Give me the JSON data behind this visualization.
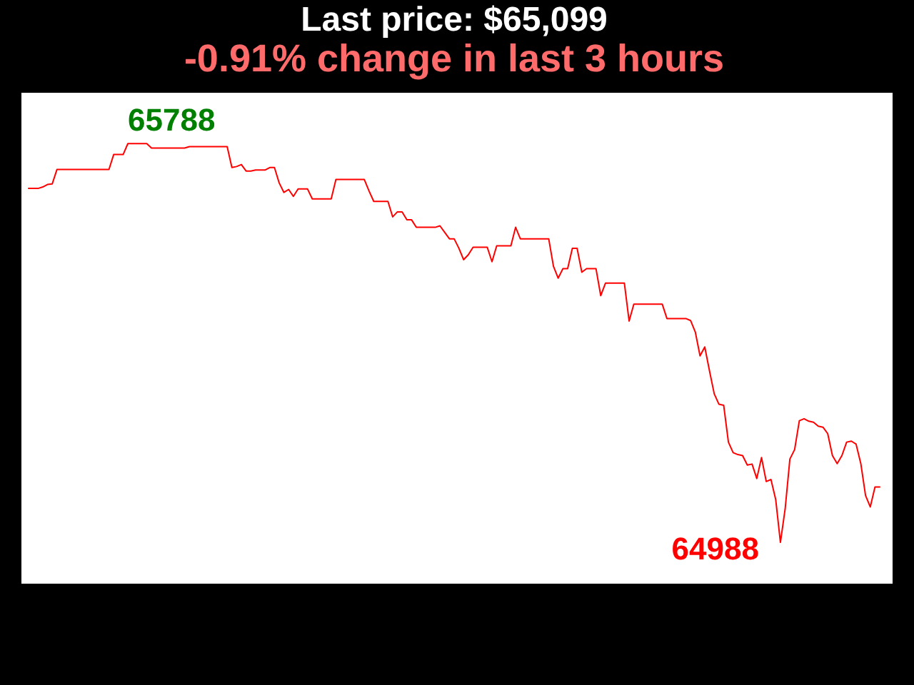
{
  "chart_data": {
    "type": "line",
    "title": "Last price: $65,099",
    "subtitle": "-0.91% change in last 3 hours",
    "categories": [
      null,
      null,
      null,
      null,
      null,
      null,
      null,
      null,
      null,
      null,
      null,
      null,
      null,
      null,
      null,
      null,
      null,
      null,
      null,
      null,
      null,
      null,
      null,
      null,
      null,
      null,
      null,
      null,
      null,
      null,
      null,
      null,
      null,
      null,
      null,
      null,
      null,
      null,
      null,
      null,
      null,
      null,
      null,
      null,
      null,
      null,
      null,
      null,
      null,
      null,
      null,
      null,
      null,
      null,
      null,
      null,
      null,
      null,
      null,
      null,
      null,
      null,
      null,
      null,
      null,
      null,
      null,
      null,
      null,
      null,
      null,
      null,
      null,
      null,
      null,
      null,
      null,
      null,
      null,
      null,
      null,
      null,
      null,
      null,
      null,
      null,
      null,
      null,
      null,
      null,
      null,
      null,
      null,
      null,
      null,
      null,
      null,
      null,
      null,
      null,
      null,
      null,
      null,
      null,
      null,
      null,
      null,
      null,
      null,
      null,
      null,
      null,
      null,
      null,
      null,
      null,
      null,
      null,
      null,
      null,
      null,
      null,
      null,
      null,
      null,
      null,
      null,
      null,
      null,
      null,
      null,
      null,
      null,
      null,
      null,
      null,
      null,
      null,
      null,
      null,
      null,
      null,
      null,
      null,
      null,
      null,
      null,
      null,
      null,
      null,
      null,
      null,
      null,
      null,
      null,
      null,
      null,
      null,
      null,
      null,
      null,
      null,
      null,
      null,
      null,
      null,
      null,
      null,
      null,
      null,
      null,
      null,
      null,
      null,
      null,
      null,
      null,
      null,
      null,
      null,
      null
    ],
    "values": [
      65698,
      65698,
      65698,
      65701,
      65706,
      65707,
      65736,
      65736,
      65736,
      65736,
      65736,
      65736,
      65736,
      65736,
      65736,
      65736,
      65736,
      65736,
      65766,
      65766,
      65766,
      65788,
      65788,
      65788,
      65788,
      65788,
      65779,
      65779,
      65779,
      65779,
      65779,
      65779,
      65779,
      65779,
      65782,
      65782,
      65782,
      65782,
      65782,
      65782,
      65782,
      65782,
      65782,
      65740,
      65742,
      65746,
      65733,
      65733,
      65735,
      65735,
      65735,
      65740,
      65740,
      65709,
      65690,
      65696,
      65682,
      65697,
      65697,
      65697,
      65677,
      65677,
      65677,
      65677,
      65677,
      65716,
      65716,
      65716,
      65716,
      65716,
      65716,
      65716,
      65693,
      65672,
      65672,
      65672,
      65672,
      65641,
      65651,
      65651,
      65635,
      65635,
      65620,
      65620,
      65620,
      65620,
      65620,
      65623,
      65610,
      65597,
      65597,
      65578,
      65555,
      65565,
      65580,
      65580,
      65580,
      65580,
      65551,
      65583,
      65583,
      65583,
      65583,
      65620,
      65597,
      65597,
      65597,
      65597,
      65597,
      65597,
      65597,
      65542,
      65518,
      65537,
      65537,
      65578,
      65578,
      65530,
      65537,
      65537,
      65537,
      65483,
      65508,
      65508,
      65508,
      65508,
      65508,
      65432,
      65466,
      65466,
      65466,
      65466,
      65466,
      65466,
      65466,
      65437,
      65437,
      65437,
      65437,
      65437,
      65433,
      65410,
      65362,
      65380,
      65332,
      65286,
      65265,
      65263,
      65189,
      65168,
      65164,
      65162,
      65143,
      65145,
      65116,
      65158,
      65110,
      65114,
      65074,
      64988,
      65055,
      65155,
      65174,
      65232,
      65236,
      65231,
      65229,
      65221,
      65219,
      65206,
      65162,
      65146,
      65162,
      65189,
      65191,
      65185,
      65146,
      65082,
      65059,
      65099,
      65099
    ],
    "value_labels": [
      null,
      null,
      null,
      null,
      null,
      null,
      null,
      null,
      null,
      null,
      null,
      null,
      null,
      null,
      null,
      null,
      null,
      null,
      null,
      null,
      null,
      "65788",
      null,
      null,
      null,
      null,
      null,
      null,
      null,
      null,
      null,
      null,
      null,
      null,
      null,
      null,
      null,
      null,
      null,
      null,
      null,
      null,
      null,
      null,
      null,
      null,
      null,
      null,
      null,
      null,
      null,
      null,
      null,
      null,
      null,
      null,
      null,
      null,
      null,
      null,
      null,
      null,
      null,
      null,
      null,
      null,
      null,
      null,
      null,
      null,
      null,
      null,
      null,
      null,
      null,
      null,
      null,
      null,
      null,
      null,
      null,
      null,
      null,
      null,
      null,
      null,
      null,
      null,
      null,
      null,
      null,
      null,
      null,
      null,
      null,
      null,
      null,
      null,
      null,
      null,
      null,
      null,
      null,
      null,
      null,
      null,
      null,
      null,
      null,
      null,
      null,
      null,
      null,
      null,
      null,
      null,
      null,
      null,
      null,
      null,
      null,
      null,
      null,
      null,
      null,
      null,
      null,
      null,
      null,
      null,
      null,
      null,
      null,
      null,
      null,
      null,
      null,
      null,
      null,
      null,
      null,
      null,
      null,
      null,
      null,
      null,
      null,
      null,
      null,
      null,
      null,
      null,
      null,
      null,
      null,
      null,
      null,
      null,
      null,
      "64988",
      null,
      null,
      null,
      null,
      null,
      null,
      null,
      null,
      null,
      null,
      null,
      null,
      null,
      null,
      null,
      null,
      null,
      null,
      null,
      null,
      null
    ],
    "color": "#ff0000",
    "ylim": [
      64905,
      65890
    ],
    "tick_labels": false
  }
}
